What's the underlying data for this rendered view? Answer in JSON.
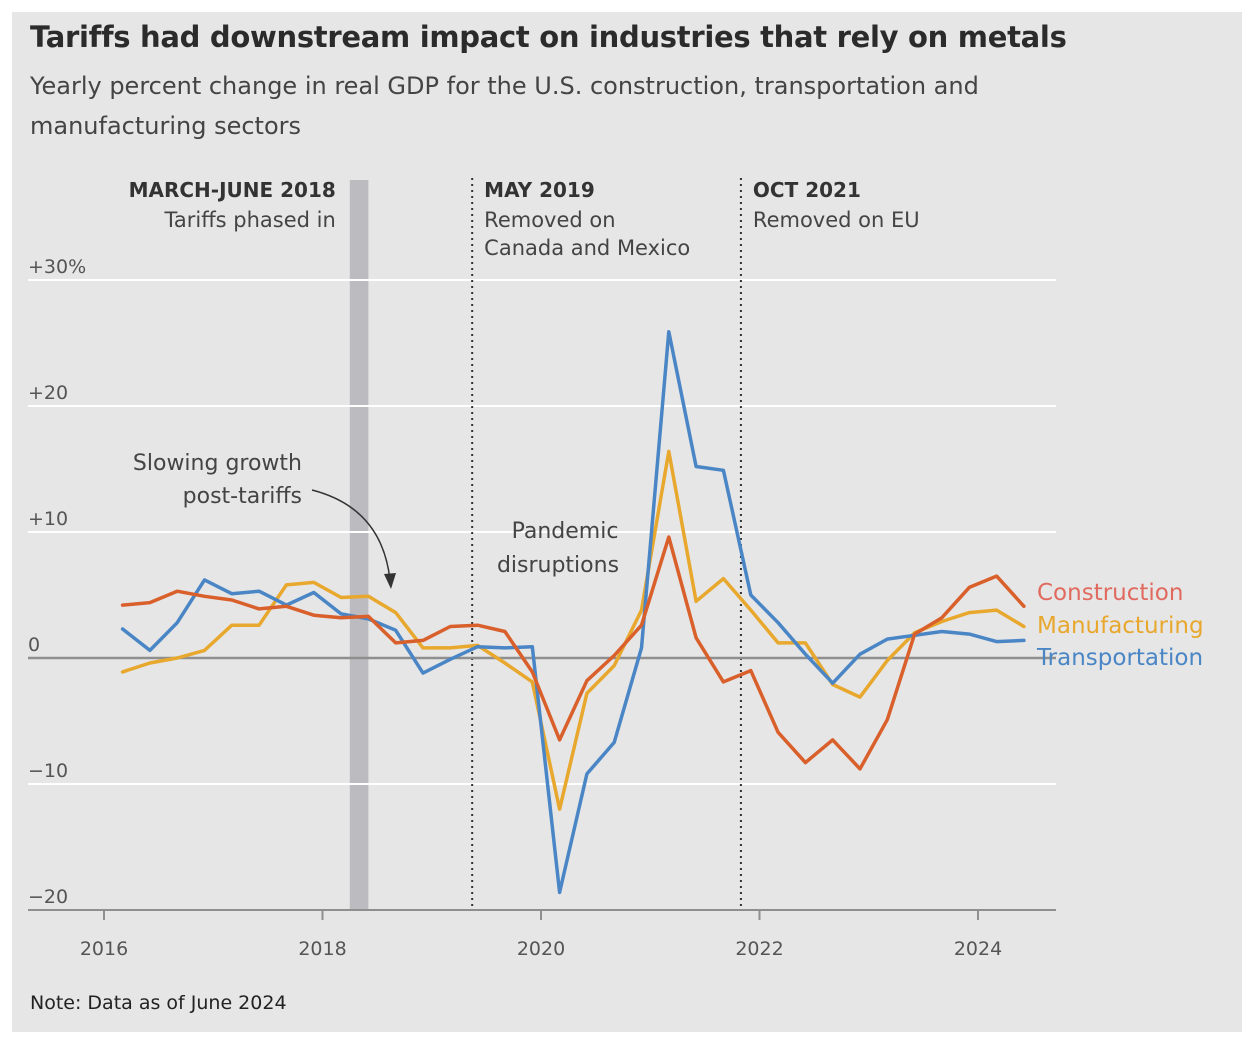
{
  "title": "Tariffs had downstream impact on industries that rely on metals",
  "subtitle": "Yearly percent change in real GDP for the U.S. construction, transportation and manufacturing sectors",
  "note": "Note: Data as of June 2024",
  "chart_data": {
    "type": "line",
    "x_unit": "year (quarterly observations)",
    "xlim": [
      2015.55,
      2024.9
    ],
    "ylim": [
      -20,
      30
    ],
    "y_ticks": [
      {
        "value": 30,
        "label": "+30%"
      },
      {
        "value": 20,
        "label": "+20"
      },
      {
        "value": 10,
        "label": "+10"
      },
      {
        "value": 0,
        "label": "0"
      },
      {
        "value": -10,
        "label": "−10"
      },
      {
        "value": -20,
        "label": "−20"
      }
    ],
    "x_ticks": [
      {
        "value": 2016,
        "label": "2016"
      },
      {
        "value": 2018,
        "label": "2018"
      },
      {
        "value": 2020,
        "label": "2020"
      },
      {
        "value": 2022,
        "label": "2022"
      },
      {
        "value": 2024,
        "label": "2024"
      }
    ],
    "grid": true,
    "legend": "right, labels at line ends",
    "x": [
      2016.17,
      2016.42,
      2016.67,
      2016.92,
      2017.17,
      2017.42,
      2017.67,
      2017.92,
      2018.17,
      2018.42,
      2018.67,
      2018.92,
      2019.17,
      2019.42,
      2019.67,
      2019.92,
      2020.17,
      2020.42,
      2020.67,
      2020.92,
      2021.17,
      2021.42,
      2021.67,
      2021.92,
      2022.17,
      2022.42,
      2022.67,
      2022.92,
      2023.17,
      2023.42,
      2023.67,
      2023.92,
      2024.17,
      2024.42
    ],
    "series": [
      {
        "name": "Construction",
        "color": "#d95f2b",
        "label_color": "#e06a5e",
        "values": [
          4.2,
          4.4,
          5.3,
          4.9,
          4.6,
          3.9,
          4.1,
          3.4,
          3.2,
          3.3,
          1.2,
          1.4,
          2.5,
          2.6,
          2.1,
          -1.1,
          -6.5,
          -1.8,
          0.2,
          2.6,
          9.6,
          1.6,
          -1.9,
          -1.0,
          -5.9,
          -8.3,
          -6.5,
          -8.8,
          -4.9,
          1.9,
          3.2,
          5.6,
          6.5,
          4.1
        ]
      },
      {
        "name": "Manufacturing",
        "color": "#e8a82e",
        "label_color": "#e8a82e",
        "values": [
          -1.1,
          -0.4,
          0.0,
          0.6,
          2.6,
          2.6,
          5.8,
          6.0,
          4.8,
          4.9,
          3.6,
          0.8,
          0.8,
          1.0,
          -0.4,
          -1.9,
          -12.0,
          -2.8,
          -0.6,
          3.8,
          16.4,
          4.5,
          6.3,
          3.8,
          1.2,
          1.2,
          -2.1,
          -3.1,
          -0.2,
          2.0,
          2.9,
          3.6,
          3.8,
          2.5
        ]
      },
      {
        "name": "Transportation",
        "color": "#4a86c5",
        "label_color": "#4a86c5",
        "values": [
          2.3,
          0.6,
          2.8,
          6.2,
          5.1,
          5.3,
          4.2,
          5.2,
          3.5,
          3.1,
          2.2,
          -1.2,
          -0.1,
          0.9,
          0.8,
          0.9,
          -18.6,
          -9.2,
          -6.7,
          0.8,
          25.9,
          15.2,
          14.9,
          5.0,
          2.8,
          0.3,
          -2.0,
          0.3,
          1.5,
          1.8,
          2.1,
          1.9,
          1.3,
          1.4
        ]
      }
    ],
    "events": [
      {
        "type": "band",
        "from": 2018.25,
        "to": 2018.42,
        "title": "MARCH-JUNE 2018",
        "text": [
          "Tariffs phased in"
        ]
      },
      {
        "type": "line",
        "at": 2019.37,
        "title": "MAY 2019",
        "text": [
          "Removed on",
          "Canada and Mexico"
        ]
      },
      {
        "type": "line",
        "at": 2021.83,
        "title": "OCT 2021",
        "text": [
          "Removed on EU"
        ]
      }
    ],
    "annotations": [
      {
        "text": [
          "Slowing growth",
          "post-tariffs"
        ]
      },
      {
        "text": [
          "Pandemic",
          "disruptions"
        ]
      }
    ]
  }
}
